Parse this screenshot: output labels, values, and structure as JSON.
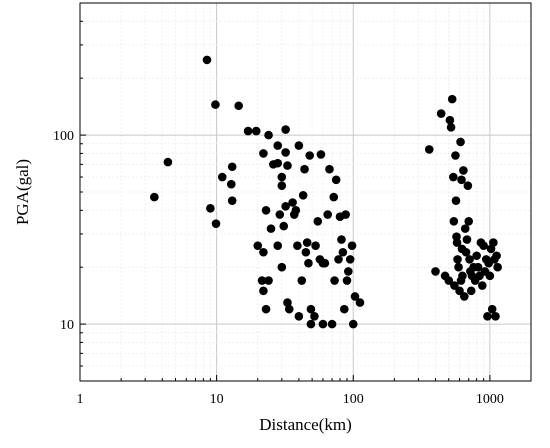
{
  "chart_data": {
    "type": "scatter",
    "title": "",
    "xlabel": "Distance(km)",
    "ylabel": "PGA(gal)",
    "xscale": "log",
    "yscale": "log",
    "xlim": [
      1,
      2000
    ],
    "ylim": [
      5,
      500
    ],
    "grid": true,
    "marker_color": "#000000",
    "x_ticks": [
      {
        "value": 1,
        "label": "1"
      },
      {
        "value": 10,
        "label": "10"
      },
      {
        "value": 100,
        "label": "100"
      },
      {
        "value": 1000,
        "label": "1000"
      }
    ],
    "y_ticks": [
      {
        "value": 10,
        "label": "10"
      },
      {
        "value": 100,
        "label": "100"
      }
    ],
    "points": [
      [
        3.5,
        47
      ],
      [
        4.4,
        72
      ],
      [
        8.5,
        250
      ],
      [
        9,
        41
      ],
      [
        9.8,
        145
      ],
      [
        9.9,
        34
      ],
      [
        11,
        60
      ],
      [
        12.8,
        55
      ],
      [
        13,
        45
      ],
      [
        13,
        68
      ],
      [
        14.5,
        143
      ],
      [
        17,
        105
      ],
      [
        19.5,
        105
      ],
      [
        20,
        26
      ],
      [
        21.5,
        17
      ],
      [
        22,
        24
      ],
      [
        22,
        15
      ],
      [
        22,
        80
      ],
      [
        23,
        40
      ],
      [
        23,
        12
      ],
      [
        24,
        17
      ],
      [
        24,
        100
      ],
      [
        25,
        32
      ],
      [
        26,
        70
      ],
      [
        28,
        26
      ],
      [
        28,
        71
      ],
      [
        28,
        88
      ],
      [
        29,
        38
      ],
      [
        30,
        54
      ],
      [
        30,
        60
      ],
      [
        30,
        20
      ],
      [
        31,
        33
      ],
      [
        32,
        107
      ],
      [
        32,
        81
      ],
      [
        32,
        42
      ],
      [
        33,
        13
      ],
      [
        33,
        69
      ],
      [
        34,
        12
      ],
      [
        36,
        44
      ],
      [
        37,
        38
      ],
      [
        38,
        40
      ],
      [
        39,
        26
      ],
      [
        40,
        11
      ],
      [
        40,
        88
      ],
      [
        42,
        17
      ],
      [
        43,
        48
      ],
      [
        44,
        66
      ],
      [
        45,
        24
      ],
      [
        46,
        27
      ],
      [
        47,
        21
      ],
      [
        48,
        78
      ],
      [
        49,
        12
      ],
      [
        49,
        10
      ],
      [
        52,
        11
      ],
      [
        53,
        26
      ],
      [
        55,
        35
      ],
      [
        57,
        22
      ],
      [
        58,
        79
      ],
      [
        60,
        21
      ],
      [
        60,
        10
      ],
      [
        62,
        21
      ],
      [
        65,
        38
      ],
      [
        67,
        66
      ],
      [
        70,
        10
      ],
      [
        72,
        47
      ],
      [
        73,
        17
      ],
      [
        75,
        58
      ],
      [
        78,
        22
      ],
      [
        80,
        37
      ],
      [
        82,
        28
      ],
      [
        84,
        24
      ],
      [
        86,
        12
      ],
      [
        88,
        38
      ],
      [
        90,
        17
      ],
      [
        92,
        19
      ],
      [
        95,
        22
      ],
      [
        98,
        26
      ],
      [
        100,
        10
      ],
      [
        103,
        14
      ],
      [
        112,
        13
      ],
      [
        360,
        84
      ],
      [
        400,
        19
      ],
      [
        440,
        130
      ],
      [
        470,
        18
      ],
      [
        500,
        17
      ],
      [
        510,
        120
      ],
      [
        520,
        110
      ],
      [
        530,
        155
      ],
      [
        540,
        60
      ],
      [
        545,
        35
      ],
      [
        550,
        16
      ],
      [
        560,
        78
      ],
      [
        565,
        45
      ],
      [
        570,
        29
      ],
      [
        575,
        27
      ],
      [
        580,
        22
      ],
      [
        590,
        20
      ],
      [
        600,
        15
      ],
      [
        610,
        92
      ],
      [
        615,
        17
      ],
      [
        620,
        58
      ],
      [
        625,
        25
      ],
      [
        630,
        18
      ],
      [
        640,
        65
      ],
      [
        650,
        14
      ],
      [
        660,
        32
      ],
      [
        670,
        24
      ],
      [
        680,
        28
      ],
      [
        690,
        54
      ],
      [
        700,
        35
      ],
      [
        710,
        22
      ],
      [
        720,
        19
      ],
      [
        730,
        15
      ],
      [
        740,
        18
      ],
      [
        760,
        20
      ],
      [
        780,
        17
      ],
      [
        800,
        23
      ],
      [
        820,
        20
      ],
      [
        840,
        18
      ],
      [
        860,
        27
      ],
      [
        880,
        16
      ],
      [
        900,
        26
      ],
      [
        920,
        19
      ],
      [
        940,
        22
      ],
      [
        960,
        11
      ],
      [
        980,
        21
      ],
      [
        1000,
        18
      ],
      [
        1020,
        25
      ],
      [
        1040,
        12
      ],
      [
        1060,
        27
      ],
      [
        1080,
        22
      ],
      [
        1100,
        11
      ],
      [
        1120,
        23
      ],
      [
        1140,
        20
      ]
    ]
  }
}
